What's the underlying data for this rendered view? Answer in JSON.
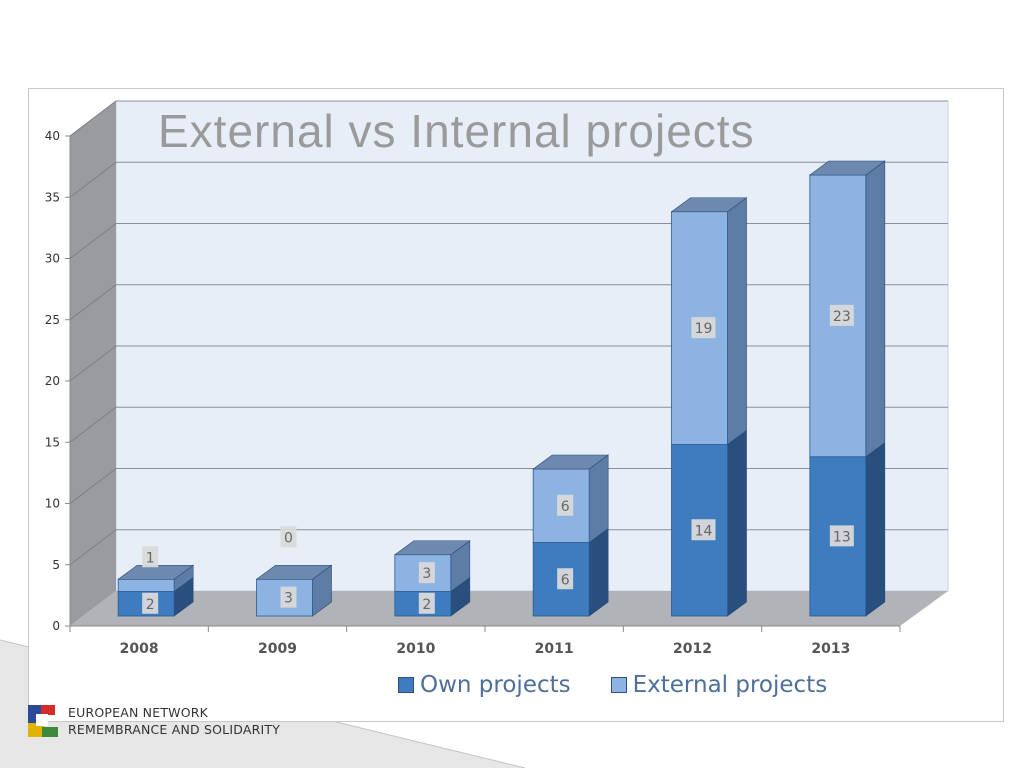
{
  "chart_data": {
    "type": "bar",
    "stacked": true,
    "three_d": true,
    "title": "External vs Internal projects",
    "categories": [
      "2008",
      "2009",
      "2010",
      "2011",
      "2012",
      "2013"
    ],
    "series": [
      {
        "name": "Own projects",
        "values": [
          2,
          0,
          2,
          6,
          14,
          13
        ],
        "color": "#3e7bbf",
        "side": "#284f7e",
        "top": "#5a7fab"
      },
      {
        "name": "External projects",
        "values": [
          1,
          3,
          3,
          6,
          19,
          23
        ],
        "color": "#8db3e2",
        "side": "#5d7ca6",
        "top": "#6e89b0"
      }
    ],
    "ylim": [
      0,
      40
    ],
    "yticks": [
      "0",
      "5",
      "10",
      "15",
      "20",
      "25",
      "30",
      "35",
      "40"
    ],
    "grid": true,
    "legend_position": "bottom"
  },
  "footer": {
    "logo_line1": "EUROPEAN NETWORK",
    "logo_line2": "REMEMBRANCE AND SOLIDARITY"
  }
}
